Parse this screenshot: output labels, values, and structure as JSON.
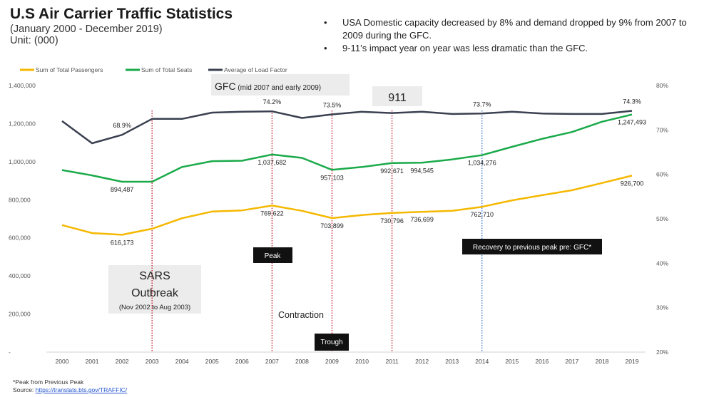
{
  "header": {
    "title": "U.S Air Carrier Traffic Statistics",
    "subtitle_line1": "(January 2000 - December 2019)",
    "subtitle_line2": "Unit: (000)"
  },
  "notes": [
    "USA Domestic capacity decreased by 8% and demand dropped by 9% from 2007 to 2009 during the GFC.",
    "9-11’s impact year on year was less dramatic than the GFC."
  ],
  "footer": {
    "note": "*Peak from Previous Peak",
    "source_label": "Source: ",
    "source_link": "https://transtats.bts.gov/TRAFFIC/"
  },
  "chart_data": {
    "type": "line",
    "categories": [
      "2000",
      "2001",
      "2002",
      "2003",
      "2004",
      "2005",
      "2006",
      "2007",
      "2008",
      "2009",
      "2010",
      "2011",
      "2012",
      "2013",
      "2014",
      "2015",
      "2016",
      "2017",
      "2018",
      "2019"
    ],
    "series": [
      {
        "name": "Sum of Total Passengers",
        "axis": "left",
        "color": "#f5b800",
        "values": [
          667000,
          625000,
          616173,
          648000,
          703000,
          738000,
          744000,
          769622,
          742000,
          703899,
          720000,
          730796,
          736699,
          742000,
          762710,
          797000,
          824000,
          850000,
          888000,
          926700
        ]
      },
      {
        "name": "Sum of Total Seats",
        "axis": "left",
        "color": "#1aaa4a",
        "values": [
          956000,
          928000,
          894487,
          894487,
          972000,
          1003000,
          1005000,
          1037682,
          1020000,
          957103,
          972000,
          992671,
          994545,
          1012000,
          1034276,
          1078000,
          1120000,
          1156000,
          1210000,
          1247493
        ]
      },
      {
        "name": "Average of Load Factor",
        "axis": "right",
        "color": "#3a4050",
        "values": [
          0.72,
          0.67,
          0.689,
          0.725,
          0.725,
          0.739,
          0.741,
          0.742,
          0.727,
          0.735,
          0.741,
          0.738,
          0.741,
          0.736,
          0.737,
          0.741,
          0.737,
          0.736,
          0.736,
          0.743
        ]
      }
    ],
    "left_axis": {
      "min": 0,
      "max": 1400000,
      "ticks": [
        "-",
        "200,000",
        "400,000",
        "600,000",
        "800,000",
        "1,000,000",
        "1,200,000",
        "1,400,000"
      ],
      "tick_values": [
        0,
        200000,
        400000,
        600000,
        800000,
        1000000,
        1200000,
        1400000
      ]
    },
    "right_axis": {
      "min": 0.2,
      "max": 0.8,
      "ticks": [
        "20%",
        "30%",
        "40%",
        "50%",
        "60%",
        "70%",
        "80%"
      ],
      "tick_values": [
        0.2,
        0.3,
        0.4,
        0.5,
        0.6,
        0.7,
        0.8
      ]
    },
    "data_labels": [
      {
        "series": 0,
        "index": 2,
        "text": "616,173",
        "pos": "below"
      },
      {
        "series": 0,
        "index": 7,
        "text": "769,622",
        "pos": "below"
      },
      {
        "series": 0,
        "index": 9,
        "text": "703,899",
        "pos": "below"
      },
      {
        "series": 0,
        "index": 11,
        "text": "730,796",
        "pos": "below"
      },
      {
        "series": 0,
        "index": 12,
        "text": "736,699",
        "pos": "below"
      },
      {
        "series": 0,
        "index": 14,
        "text": "762,710",
        "pos": "below"
      },
      {
        "series": 0,
        "index": 19,
        "text": "926,700",
        "pos": "below"
      },
      {
        "series": 1,
        "index": 2,
        "text": "894,487",
        "pos": "below"
      },
      {
        "series": 1,
        "index": 7,
        "text": "1,037,682",
        "pos": "below"
      },
      {
        "series": 1,
        "index": 9,
        "text": "957,103",
        "pos": "below"
      },
      {
        "series": 1,
        "index": 11,
        "text": "992,671",
        "pos": "below"
      },
      {
        "series": 1,
        "index": 12,
        "text": "994,545",
        "pos": "below"
      },
      {
        "series": 1,
        "index": 14,
        "text": "1,034,276",
        "pos": "below"
      },
      {
        "series": 1,
        "index": 19,
        "text": "1,247,493",
        "pos": "below"
      },
      {
        "series": 2,
        "index": 2,
        "text": "68.9%",
        "pos": "above"
      },
      {
        "series": 2,
        "index": 7,
        "text": "74.2%",
        "pos": "above"
      },
      {
        "series": 2,
        "index": 9,
        "text": "73.5%",
        "pos": "above"
      },
      {
        "series": 2,
        "index": 14,
        "text": "73.7%",
        "pos": "above"
      },
      {
        "series": 2,
        "index": 19,
        "text": "74.3%",
        "pos": "above"
      }
    ],
    "event_lines": [
      {
        "index": 3,
        "color": "#c0001a",
        "style": "dotted"
      },
      {
        "index": 7,
        "color": "#c0001a",
        "style": "dotted"
      },
      {
        "index": 9,
        "color": "#c0001a",
        "style": "dotted"
      },
      {
        "index": 11,
        "color": "#c0001a",
        "style": "dotted"
      },
      {
        "index": 14,
        "color": "#2b6cc4",
        "style": "dotted"
      }
    ],
    "annotations": {
      "gfc_main": "GFC",
      "gfc_detail": " (mid 2007 and early 2009)",
      "event_911": "911",
      "sars_line1": "SARS",
      "sars_line2": "Outbreak",
      "sars_detail": "(Nov 2002 to Aug 2003)",
      "peak": "Peak",
      "contraction": "Contraction",
      "trough": "Trough",
      "recovery": "Recovery to previous peak pre: GFC*"
    },
    "legend_position": "top-left",
    "grid": false
  },
  "colors": {
    "passengers": "#f5b800",
    "seats": "#1aaa4a",
    "load_factor": "#3a4050",
    "event_red": "#c0001a",
    "event_blue": "#2b6cc4"
  }
}
